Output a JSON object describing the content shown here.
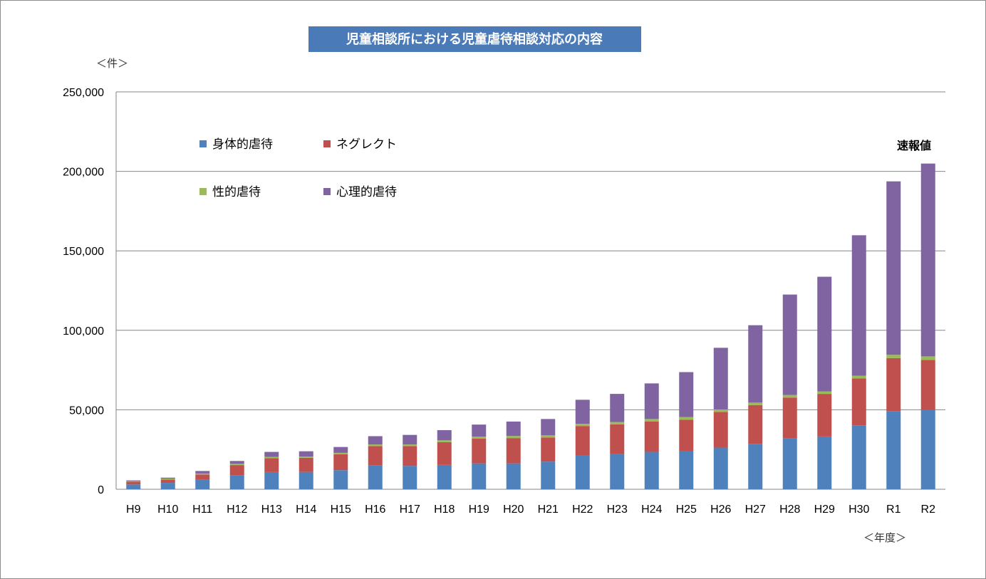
{
  "chart_data": {
    "type": "bar",
    "stacked": true,
    "title": "児童相談所における児童虐待相談対応の内容",
    "y_unit_label": "＜件＞",
    "x_unit_label": "＜年度＞",
    "annotation": "速報値",
    "ylim": [
      0,
      250000
    ],
    "y_ticks": [
      "0",
      "50,000",
      "100,000",
      "150,000",
      "200,000",
      "250,000"
    ],
    "y_tick_values": [
      0,
      50000,
      100000,
      150000,
      200000,
      250000
    ],
    "grid": true,
    "legend_position": "top-left",
    "categories": [
      "H9",
      "H10",
      "H11",
      "H12",
      "H13",
      "H14",
      "H15",
      "H16",
      "H17",
      "H18",
      "H19",
      "H20",
      "H21",
      "H22",
      "H23",
      "H24",
      "H25",
      "H26",
      "H27",
      "H28",
      "H29",
      "H30",
      "R1",
      "R2"
    ],
    "series": [
      {
        "name": "身体的虐待",
        "color": "#4f81bd",
        "values": [
          3000,
          4000,
          5900,
          8900,
          10800,
          10900,
          12000,
          14900,
          14700,
          15300,
          16300,
          16300,
          17400,
          21500,
          22000,
          23500,
          24200,
          26200,
          28600,
          31900,
          33200,
          40200,
          49200,
          50000
        ]
      },
      {
        "name": "ネグレクト",
        "color": "#c0504d",
        "values": [
          1800,
          2100,
          3400,
          6300,
          8800,
          8900,
          10000,
          12300,
          12500,
          14300,
          15500,
          15900,
          15200,
          18300,
          18800,
          19200,
          19600,
          22500,
          24400,
          25800,
          26800,
          29500,
          33300,
          31400
        ]
      },
      {
        "name": "性的虐待",
        "color": "#9bbb59",
        "values": [
          300,
          600,
          600,
          800,
          800,
          800,
          900,
          1000,
          1000,
          1200,
          1300,
          1300,
          1300,
          1400,
          1500,
          1500,
          1600,
          1500,
          1500,
          1600,
          1500,
          1700,
          2100,
          2200
        ]
      },
      {
        "name": "心理的虐待",
        "color": "#8064a2",
        "values": [
          500,
          600,
          1600,
          1800,
          3100,
          3300,
          3700,
          5200,
          6000,
          6400,
          7600,
          9100,
          10300,
          15100,
          17700,
          22400,
          28300,
          38800,
          48700,
          63200,
          72200,
          88400,
          109100,
          121300
        ]
      }
    ]
  }
}
